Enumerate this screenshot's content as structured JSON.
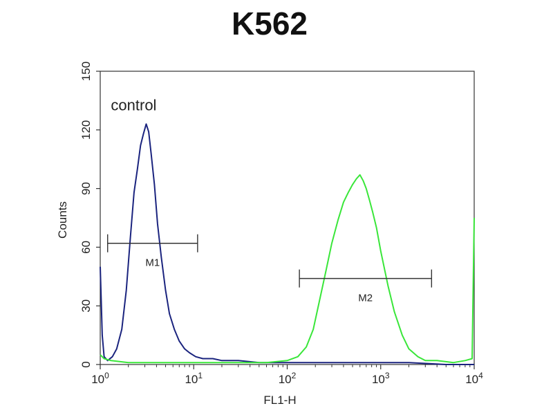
{
  "chart_data": {
    "type": "line",
    "title": "K562",
    "xlabel": "FL1-H",
    "ylabel": "Counts",
    "x_scale": "log",
    "xlim": [
      1,
      10000
    ],
    "ylim": [
      0,
      150
    ],
    "x_ticks": [
      {
        "value": 1,
        "base": "10",
        "exp": "0"
      },
      {
        "value": 10,
        "base": "10",
        "exp": "1"
      },
      {
        "value": 100,
        "base": "10",
        "exp": "2"
      },
      {
        "value": 1000,
        "base": "10",
        "exp": "3"
      },
      {
        "value": 10000,
        "base": "10",
        "exp": "4"
      }
    ],
    "y_ticks": [
      0,
      30,
      60,
      90,
      120,
      150
    ],
    "grid": false,
    "legend": "none",
    "annotations": [
      {
        "text": "control",
        "x": 1.3,
        "y": 130
      }
    ],
    "markers": [
      {
        "label": "M1",
        "x_start": 1.2,
        "x_end": 11,
        "y": 62
      },
      {
        "label": "M2",
        "x_start": 135,
        "x_end": 3500,
        "y": 44
      }
    ],
    "series": [
      {
        "color": "#1a237e",
        "x": [
          1.0,
          1.05,
          1.1,
          1.2,
          1.35,
          1.5,
          1.7,
          1.9,
          2.1,
          2.3,
          2.5,
          2.7,
          2.9,
          3.1,
          3.3,
          3.5,
          3.8,
          4.1,
          4.5,
          5.0,
          5.5,
          6.2,
          7.0,
          8.0,
          9.0,
          10.5,
          12.5,
          16,
          20,
          30,
          50,
          100,
          300,
          600,
          1000,
          2000,
          5000,
          10000
        ],
        "y": [
          50,
          15,
          4,
          2,
          4,
          8,
          18,
          38,
          65,
          88,
          100,
          112,
          118,
          123,
          119,
          108,
          92,
          72,
          55,
          38,
          26,
          18,
          12,
          8,
          6,
          4,
          3,
          3,
          2,
          2,
          1,
          1,
          1,
          1,
          1,
          1,
          0,
          0
        ]
      },
      {
        "color": "#39e639",
        "x": [
          1.0,
          1.1,
          1.3,
          2,
          5,
          10,
          30,
          60,
          100,
          130,
          160,
          190,
          220,
          260,
          300,
          350,
          400,
          450,
          500,
          550,
          600,
          650,
          700,
          760,
          820,
          900,
          1000,
          1200,
          1400,
          1700,
          2000,
          2500,
          3000,
          4000,
          6000,
          8000,
          9500,
          10000
        ],
        "y": [
          5,
          3,
          2,
          1,
          1,
          1,
          1,
          1,
          2,
          4,
          9,
          18,
          32,
          48,
          62,
          74,
          83,
          88,
          92,
          95,
          97,
          94,
          90,
          84,
          78,
          70,
          58,
          40,
          27,
          15,
          8,
          4,
          2,
          2,
          1,
          2,
          3,
          75
        ]
      }
    ]
  }
}
